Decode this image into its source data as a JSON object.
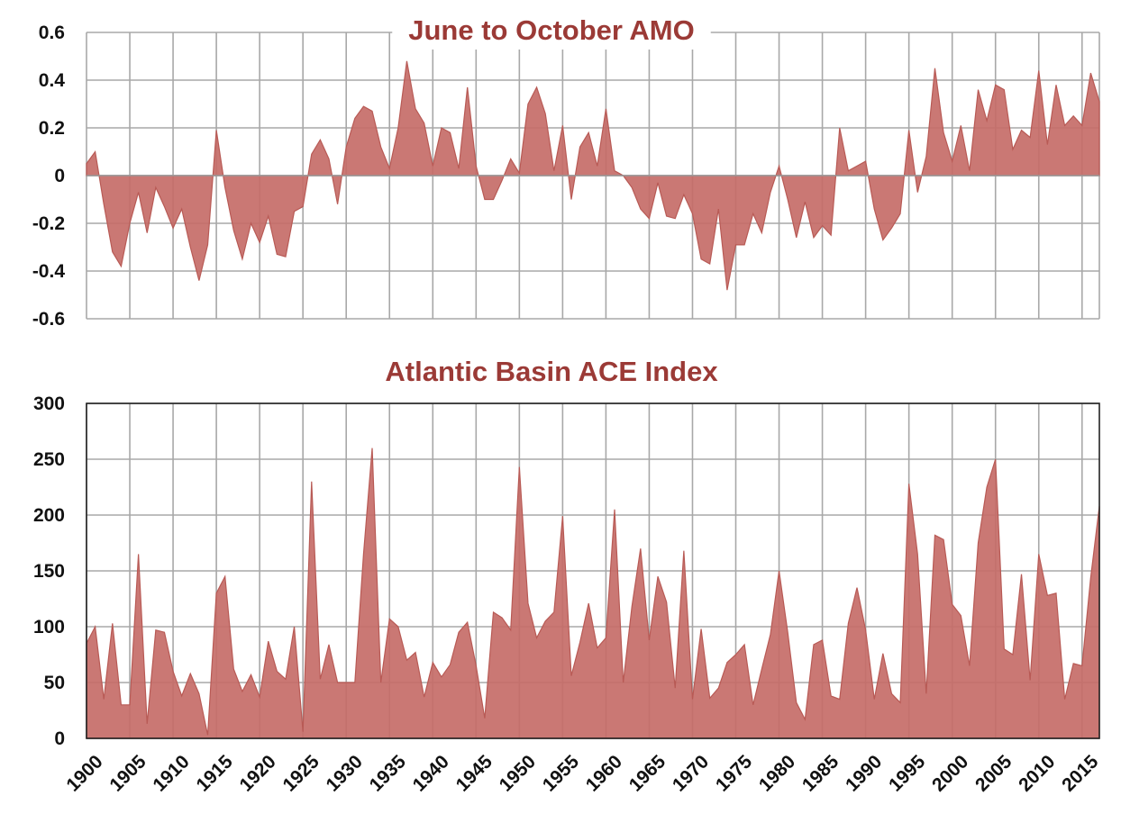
{
  "chart_data": [
    {
      "type": "area",
      "title": "June to October AMO",
      "xlabel": "",
      "ylabel": "",
      "grid": true,
      "fill_color": "#c56d68",
      "stroke_color": "#b85a55",
      "title_color": "#9b3a36",
      "xlim": [
        1900,
        2017
      ],
      "ylim": [
        -0.6,
        0.6
      ],
      "yticks": [
        "0.6",
        "0.4",
        "0.2",
        "0",
        "-0.2",
        "-0.4",
        "-0.6"
      ],
      "x": [
        1900,
        1901,
        1902,
        1903,
        1904,
        1905,
        1906,
        1907,
        1908,
        1909,
        1910,
        1911,
        1912,
        1913,
        1914,
        1915,
        1916,
        1917,
        1918,
        1919,
        1920,
        1921,
        1922,
        1923,
        1924,
        1925,
        1926,
        1927,
        1928,
        1929,
        1930,
        1931,
        1932,
        1933,
        1934,
        1935,
        1936,
        1937,
        1938,
        1939,
        1940,
        1941,
        1942,
        1943,
        1944,
        1945,
        1946,
        1947,
        1948,
        1949,
        1950,
        1951,
        1952,
        1953,
        1954,
        1955,
        1956,
        1957,
        1958,
        1959,
        1960,
        1961,
        1962,
        1963,
        1964,
        1965,
        1966,
        1967,
        1968,
        1969,
        1970,
        1971,
        1972,
        1973,
        1974,
        1975,
        1976,
        1977,
        1978,
        1979,
        1980,
        1981,
        1982,
        1983,
        1984,
        1985,
        1986,
        1987,
        1988,
        1989,
        1990,
        1991,
        1992,
        1993,
        1994,
        1995,
        1996,
        1997,
        1998,
        1999,
        2000,
        2001,
        2002,
        2003,
        2004,
        2005,
        2006,
        2007,
        2008,
        2009,
        2010,
        2011,
        2012,
        2013,
        2014,
        2015,
        2016,
        2017
      ],
      "values": [
        0.05,
        0.1,
        -0.12,
        -0.32,
        -0.38,
        -0.2,
        -0.07,
        -0.24,
        -0.05,
        -0.13,
        -0.22,
        -0.14,
        -0.3,
        -0.44,
        -0.29,
        0.19,
        -0.05,
        -0.23,
        -0.35,
        -0.2,
        -0.28,
        -0.17,
        -0.33,
        -0.34,
        -0.15,
        -0.13,
        0.09,
        0.15,
        0.07,
        -0.12,
        0.12,
        0.24,
        0.29,
        0.27,
        0.12,
        0.03,
        0.2,
        0.48,
        0.28,
        0.22,
        0.04,
        0.2,
        0.18,
        0.03,
        0.37,
        0.04,
        -0.1,
        -0.1,
        -0.02,
        0.07,
        0.01,
        0.3,
        0.37,
        0.26,
        0.02,
        0.21,
        -0.1,
        0.12,
        0.18,
        0.04,
        0.28,
        0.02,
        0.0,
        -0.05,
        -0.14,
        -0.18,
        -0.03,
        -0.17,
        -0.18,
        -0.08,
        -0.16,
        -0.35,
        -0.37,
        -0.14,
        -0.48,
        -0.29,
        -0.29,
        -0.16,
        -0.24,
        -0.07,
        0.04,
        -0.1,
        -0.26,
        -0.11,
        -0.26,
        -0.21,
        -0.25,
        0.2,
        0.02,
        0.04,
        0.06,
        -0.14,
        -0.27,
        -0.22,
        -0.16,
        0.19,
        -0.07,
        0.08,
        0.45,
        0.18,
        0.06,
        0.21,
        0.02,
        0.36,
        0.23,
        0.38,
        0.36,
        0.11,
        0.19,
        0.16,
        0.44,
        0.13,
        0.38,
        0.21,
        0.25,
        0.21,
        0.43,
        0.31
      ]
    },
    {
      "type": "area",
      "title": "Atlantic Basin ACE Index",
      "xlabel": "",
      "ylabel": "",
      "grid": true,
      "fill_color": "#c56d68",
      "stroke_color": "#b85a55",
      "title_color": "#9b3a36",
      "xlim": [
        1900,
        2017
      ],
      "ylim": [
        0,
        300
      ],
      "yticks": [
        "300",
        "250",
        "200",
        "150",
        "100",
        "50",
        "0"
      ],
      "xticks": [
        "1900",
        "1905",
        "1910",
        "1915",
        "1920",
        "1925",
        "1930",
        "1935",
        "1940",
        "1945",
        "1950",
        "1955",
        "1960",
        "1965",
        "1970",
        "1975",
        "1980",
        "1985",
        "1990",
        "1995",
        "2000",
        "2005",
        "2010",
        "2015"
      ],
      "x": [
        1900,
        1901,
        1902,
        1903,
        1904,
        1905,
        1906,
        1907,
        1908,
        1909,
        1910,
        1911,
        1912,
        1913,
        1914,
        1915,
        1916,
        1917,
        1918,
        1919,
        1920,
        1921,
        1922,
        1923,
        1924,
        1925,
        1926,
        1927,
        1928,
        1929,
        1930,
        1931,
        1932,
        1933,
        1934,
        1935,
        1936,
        1937,
        1938,
        1939,
        1940,
        1941,
        1942,
        1943,
        1944,
        1945,
        1946,
        1947,
        1948,
        1949,
        1950,
        1951,
        1952,
        1953,
        1954,
        1955,
        1956,
        1957,
        1958,
        1959,
        1960,
        1961,
        1962,
        1963,
        1964,
        1965,
        1966,
        1967,
        1968,
        1969,
        1970,
        1971,
        1972,
        1973,
        1974,
        1975,
        1976,
        1977,
        1978,
        1979,
        1980,
        1981,
        1982,
        1983,
        1984,
        1985,
        1986,
        1987,
        1988,
        1989,
        1990,
        1991,
        1992,
        1993,
        1994,
        1995,
        1996,
        1997,
        1998,
        1999,
        2000,
        2001,
        2002,
        2003,
        2004,
        2005,
        2006,
        2007,
        2008,
        2009,
        2010,
        2011,
        2012,
        2013,
        2014,
        2015,
        2016,
        2017
      ],
      "values": [
        85,
        100,
        35,
        103,
        30,
        30,
        165,
        13,
        97,
        95,
        60,
        38,
        58,
        40,
        3,
        130,
        145,
        62,
        42,
        57,
        37,
        87,
        60,
        53,
        100,
        6,
        230,
        53,
        84,
        50,
        50,
        50,
        165,
        260,
        50,
        107,
        100,
        70,
        77,
        37,
        68,
        55,
        66,
        95,
        104,
        65,
        18,
        113,
        108,
        97,
        243,
        121,
        90,
        105,
        113,
        199,
        56,
        86,
        121,
        81,
        90,
        205,
        50,
        118,
        170,
        88,
        145,
        122,
        45,
        168,
        35,
        98,
        36,
        45,
        68,
        75,
        84,
        30,
        62,
        93,
        150,
        95,
        32,
        17,
        84,
        88,
        38,
        35,
        103,
        135,
        97,
        35,
        76,
        40,
        32,
        228,
        165,
        40,
        182,
        178,
        120,
        110,
        65,
        175,
        225,
        250,
        80,
        75,
        147,
        52,
        165,
        128,
        130,
        35,
        67,
        65,
        144,
        208
      ]
    }
  ]
}
